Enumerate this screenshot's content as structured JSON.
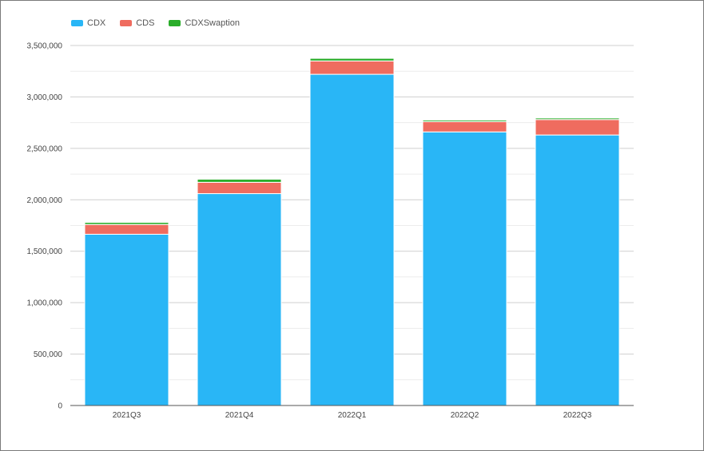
{
  "chart_data": {
    "type": "bar",
    "stacked": true,
    "categories": [
      "2021Q3",
      "2021Q4",
      "2022Q1",
      "2022Q2",
      "2022Q3"
    ],
    "series": [
      {
        "name": "CDX",
        "color": "#29b6f6",
        "values": [
          1665000,
          2060000,
          3220000,
          2660000,
          2630000
        ]
      },
      {
        "name": "CDS",
        "color": "#ef6c5f",
        "values": [
          95000,
          110000,
          130000,
          100000,
          150000
        ]
      },
      {
        "name": "CDXSwaption",
        "color": "#2aad2a",
        "values": [
          20000,
          30000,
          25000,
          15000,
          15000
        ]
      }
    ],
    "ylim": [
      0,
      3500000
    ],
    "yticks": [
      0,
      500000,
      1000000,
      1500000,
      2000000,
      2500000,
      3000000,
      3500000
    ],
    "ytick_labels": [
      "0",
      "500,000",
      "1,000,000",
      "1,500,000",
      "2,000,000",
      "2,500,000",
      "3,000,000",
      "3,500,000"
    ],
    "grid": true,
    "legend": "top-left"
  }
}
